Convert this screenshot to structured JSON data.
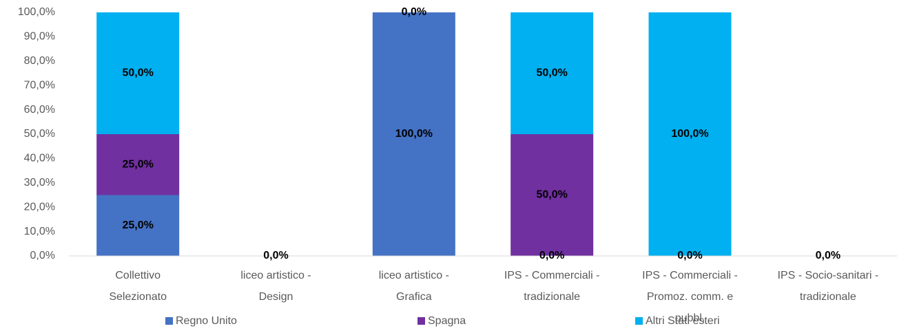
{
  "chart_data": {
    "type": "stacked_bar",
    "categories": [
      "Collettivo\nSelezionato",
      "liceo artistico -\nDesign",
      "liceo artistico -\nGrafica",
      "IPS - Commerciali -\ntradizionale",
      "IPS - Commerciali -\nPromoz. comm. e\npubbl.",
      "IPS - Socio-sanitari -\ntradizionale"
    ],
    "series": [
      {
        "name": "Regno Unito",
        "color": "#4472c4",
        "values": [
          25,
          0,
          100,
          0,
          0,
          0
        ],
        "value_labels": [
          "25,0%",
          "0,0%",
          "100,0%",
          "0,0%",
          "0,0%",
          "0,0%"
        ]
      },
      {
        "name": "Spagna",
        "color": "#7030a0",
        "values": [
          25,
          0,
          0,
          50,
          0,
          0
        ],
        "value_labels": [
          "25,0%",
          null,
          null,
          "50,0%",
          null,
          null
        ]
      },
      {
        "name": "Altri Stati esteri",
        "color": "#00b0f0",
        "values": [
          50,
          0,
          0,
          50,
          100,
          0
        ],
        "value_labels": [
          "50,0%",
          null,
          "0,0%",
          "50,0%",
          "100,0%",
          null
        ]
      }
    ],
    "ylim": [
      0,
      100
    ],
    "yticks": [
      {
        "value": 0,
        "label": "0,0%"
      },
      {
        "value": 10,
        "label": "10,0%"
      },
      {
        "value": 20,
        "label": "20,0%"
      },
      {
        "value": 30,
        "label": "30,0%"
      },
      {
        "value": 40,
        "label": "40,0%"
      },
      {
        "value": 50,
        "label": "50,0%"
      },
      {
        "value": 60,
        "label": "60,0%"
      },
      {
        "value": 70,
        "label": "70,0%"
      },
      {
        "value": 80,
        "label": "80,0%"
      },
      {
        "value": 90,
        "label": "90,0%"
      },
      {
        "value": 100,
        "label": "100,0%"
      }
    ],
    "grid": false,
    "legend": "bottom"
  }
}
